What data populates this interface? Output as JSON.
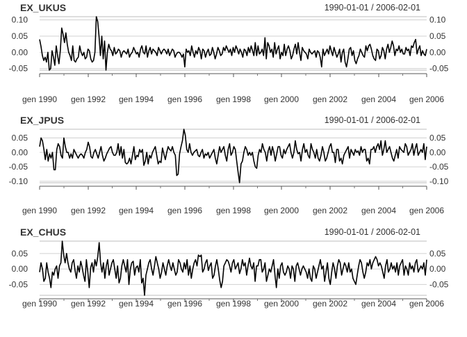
{
  "chart_data": [
    {
      "type": "line",
      "title": "EX_UKUS",
      "date_range": "1990-01-01 / 2006-02-01",
      "x_ticks": [
        "gen 1990",
        "gen 1992",
        "gen 1994",
        "gen 1996",
        "gen 1998",
        "gen 2000",
        "gen 2002",
        "gen 2004",
        "gen 2006"
      ],
      "y_ticks": [
        "0.10",
        "0.05",
        "0.00",
        "-0.05"
      ],
      "ylim": [
        -0.055,
        0.11
      ],
      "grid": true,
      "series": [
        {
          "values": [
            0.04,
            0.018,
            -0.01,
            -0.025,
            -0.015,
            -0.03,
            0.0,
            -0.055,
            -0.05,
            0.005,
            -0.015,
            -0.04,
            0.02,
            -0.01,
            -0.035,
            0.005,
            0.075,
            0.055,
            0.03,
            0.06,
            0.025,
            0.0,
            -0.01,
            -0.025,
            0.02,
            -0.025,
            -0.03,
            -0.02,
            -0.015,
            0.02,
            0.0,
            -0.01,
            0.0,
            -0.02,
            -0.015,
            0.01,
            0.005,
            -0.02,
            -0.03,
            -0.025,
            0.0,
            0.11,
            0.095,
            0.05,
            -0.01,
            0.05,
            -0.02,
            0.035,
            -0.055,
            0.0,
            0.025,
            0.01,
            0.005,
            -0.01,
            0.015,
            -0.005,
            0.0,
            0.01,
            0.005,
            -0.015,
            0.0,
            0.005,
            0.0,
            -0.005,
            0.01,
            -0.015,
            -0.005,
            0.0,
            0.015,
            0.005,
            -0.005,
            0.0,
            -0.015,
            0.01,
            0.02,
            0.0,
            -0.005,
            0.02,
            -0.015,
            0.005,
            0.015,
            -0.005,
            0.01,
            0.005,
            0.0,
            -0.01,
            0.015,
            0.005,
            -0.005,
            0.005,
            0.01,
            0.005,
            -0.005,
            0.01,
            -0.01,
            0.0,
            0.01,
            0.005,
            -0.015,
            -0.005,
            0.0,
            0.0,
            -0.005,
            -0.015,
            -0.005,
            -0.045,
            0.01,
            0.0,
            0.005,
            -0.01,
            0.02,
            0.0,
            -0.015,
            0.005,
            -0.005,
            0.015,
            0.005,
            -0.02,
            0.01,
            0.005,
            -0.015,
            0.0,
            0.01,
            -0.01,
            -0.005,
            0.015,
            0.0,
            -0.02,
            -0.005,
            0.015,
            0.005,
            -0.01,
            -0.005,
            0.015,
            0.005,
            0.02,
            0.01,
            0.0,
            0.01,
            -0.01,
            0.015,
            0.0,
            0.02,
            0.01,
            -0.005,
            0.01,
            0.0,
            -0.015,
            0.01,
            0.005,
            -0.01,
            0.015,
            0.0,
            0.02,
            0.005,
            -0.01,
            0.03,
            -0.01,
            0.02,
            -0.005,
            0.0,
            0.01,
            -0.01,
            0.045,
            -0.02,
            0.03,
            0.02,
            0.0,
            0.01,
            -0.015,
            0.03,
            -0.005,
            0.01,
            0.02,
            -0.02,
            0.0,
            -0.01,
            0.025,
            -0.01,
            0.01,
            0.02,
            0.005,
            -0.02,
            -0.01,
            0.01,
            0.025,
            -0.005,
            0.03,
            0.0,
            -0.025,
            0.015,
            0.005,
            0.0,
            -0.005,
            -0.02,
            0.01,
            0.0,
            -0.005,
            0.0,
            0.005,
            -0.015,
            0.005,
            0.0,
            -0.015,
            -0.045,
            0.01,
            -0.01,
            0.0,
            0.01,
            -0.005,
            0.02,
            0.005,
            -0.01,
            0.015,
            0.0,
            -0.015,
            -0.005,
            0.01,
            -0.03,
            0.0,
            0.01,
            -0.03,
            -0.045,
            -0.02,
            0.01,
            0.015,
            -0.01,
            0.005,
            -0.025,
            -0.035,
            -0.02,
            -0.01,
            0.01,
            0.0,
            -0.01,
            -0.015,
            0.02,
            0.005,
            0.02,
            0.025,
            0.01,
            -0.01,
            -0.02,
            -0.025,
            0.01,
            0.005,
            -0.02,
            -0.01,
            0.015,
            0.005,
            -0.02,
            0.01,
            0.025,
            0.0,
            0.015,
            0.035,
            0.02,
            -0.01,
            0.01,
            0.005,
            0.02,
            0.0,
            0.01,
            -0.005,
            -0.005,
            0.015,
            0.005,
            0.01,
            -0.01,
            0.02,
            0.015,
            0.03,
            0.04,
            -0.005,
            0.01,
            0.02,
            -0.01,
            0.005,
            -0.005,
            -0.01,
            0.01
          ]
        }
      ]
    },
    {
      "type": "line",
      "title": "EX_JPUS",
      "date_range": "1990-01-01 / 2006-02-01",
      "x_ticks": [
        "gen 1990",
        "gen 1992",
        "gen 1994",
        "gen 1996",
        "gen 1998",
        "gen 2000",
        "gen 2002",
        "gen 2004",
        "gen 2006"
      ],
      "y_ticks": [
        "0.05",
        "0.00",
        "-0.05",
        "-0.10"
      ],
      "ylim": [
        -0.105,
        0.08
      ],
      "grid": true,
      "series": [
        {
          "values": [
            0.02,
            0.05,
            0.04,
            0.01,
            -0.025,
            0.01,
            -0.03,
            -0.005,
            -0.02,
            0.0,
            -0.06,
            -0.06,
            0.01,
            0.03,
            0.02,
            -0.01,
            -0.02,
            0.05,
            0.02,
            0.0,
            0.0,
            -0.02,
            -0.005,
            -0.02,
            0.01,
            0.0,
            -0.01,
            -0.02,
            -0.01,
            -0.005,
            -0.01,
            -0.02,
            0.0,
            0.01,
            0.035,
            0.02,
            -0.015,
            -0.02,
            0.0,
            0.01,
            -0.005,
            -0.02,
            0.0,
            0.02,
            -0.01,
            -0.03,
            -0.02,
            -0.005,
            0.005,
            0.015,
            0.02,
            0.0,
            -0.01,
            -0.01,
            0.0,
            0.03,
            -0.01,
            0.02,
            -0.02,
            0.01,
            -0.035,
            -0.04,
            -0.035,
            -0.02,
            -0.04,
            -0.01,
            0.02,
            -0.025,
            -0.01,
            -0.015,
            0.01,
            0.0,
            0.01,
            -0.045,
            -0.03,
            0.0,
            -0.04,
            -0.01,
            -0.02,
            0.0,
            0.01,
            0.02,
            -0.01,
            -0.04,
            -0.03,
            -0.035,
            0.015,
            -0.005,
            -0.025,
            0.0,
            0.02,
            0.01,
            0.005,
            0.02,
            0.0,
            -0.01,
            -0.08,
            -0.075,
            -0.005,
            0.02,
            0.04,
            0.08,
            0.06,
            0.01,
            0.0,
            0.03,
            0.0,
            -0.01,
            0.0,
            0.005,
            0.01,
            -0.01,
            -0.015,
            0.0,
            0.01,
            -0.02,
            -0.005,
            -0.01,
            0.0,
            -0.02,
            -0.01,
            0.0,
            0.01,
            -0.02,
            -0.04,
            -0.01,
            0.02,
            0.0,
            0.01,
            0.02,
            -0.01,
            -0.03,
            0.01,
            0.03,
            -0.01,
            0.0,
            0.02,
            0.01,
            -0.03,
            -0.07,
            -0.105,
            -0.04,
            -0.03,
            0.0,
            0.02,
            0.01,
            -0.01,
            0.0,
            -0.01,
            0.0,
            -0.03,
            -0.05,
            -0.055,
            -0.01,
            0.01,
            0.0,
            0.03,
            0.01,
            0.0,
            -0.03,
            0.005,
            0.02,
            -0.01,
            0.02,
            0.0,
            -0.03,
            -0.005,
            0.02,
            0.02,
            -0.01,
            -0.02,
            0.01,
            -0.005,
            0.01,
            0.02,
            0.03,
            0.0,
            -0.02,
            0.0,
            0.04,
            0.01,
            -0.005,
            0.0,
            -0.03,
            0.01,
            0.03,
            0.0,
            0.01,
            -0.01,
            -0.02,
            0.03,
            0.01,
            0.0,
            -0.02,
            0.01,
            -0.02,
            -0.03,
            -0.01,
            0.02,
            0.0,
            -0.03,
            -0.02,
            0.0,
            0.02,
            0.03,
            0.0,
            0.0,
            -0.035,
            0.01,
            0.01,
            -0.03,
            -0.02,
            -0.04,
            -0.01,
            0.0,
            0.01,
            0.02,
            -0.02,
            0.01,
            0.0,
            -0.01,
            0.01,
            0.0,
            0.005,
            -0.01,
            0.02,
            0.0,
            0.01,
            0.01,
            -0.03,
            -0.02,
            -0.04,
            0.01,
            0.01,
            0.02,
            0.0,
            0.02,
            0.03,
            0.01,
            0.04,
            -0.01,
            0.01,
            0.04,
            0.0,
            0.01,
            0.02,
            0.0,
            -0.02,
            -0.03,
            -0.01,
            0.01,
            -0.02,
            0.02,
            0.01,
            0.005,
            0.0,
            0.03,
            0.02,
            -0.01,
            0.0,
            0.01,
            0.03,
            -0.01,
            0.015,
            0.03,
            -0.01,
            0.0,
            0.01,
            0.0,
            0.03,
            -0.025,
            0.02
          ]
        }
      ]
    },
    {
      "type": "line",
      "title": "EX_CHUS",
      "date_range": "1990-01-01 / 2006-02-01",
      "x_ticks": [
        "gen 1990",
        "gen 1992",
        "gen 1994",
        "gen 1996",
        "gen 1998",
        "gen 2000",
        "gen 2002",
        "gen 2004",
        "gen 2006"
      ],
      "y_ticks": [
        "0.05",
        "0.00",
        "-0.05"
      ],
      "ylim": [
        -0.085,
        0.09
      ],
      "grid": true,
      "series": [
        {
          "values": [
            -0.01,
            0.02,
            0.0,
            -0.04,
            -0.03,
            0.02,
            -0.01,
            -0.03,
            -0.06,
            -0.01,
            -0.02,
            0.0,
            0.01,
            -0.03,
            0.01,
            0.02,
            0.09,
            0.045,
            0.02,
            0.05,
            0.02,
            0.0,
            -0.01,
            0.02,
            0.03,
            -0.005,
            -0.03,
            0.01,
            -0.01,
            0.025,
            0.005,
            -0.02,
            -0.04,
            0.03,
            -0.01,
            -0.06,
            0.005,
            0.02,
            -0.01,
            0.03,
            0.01,
            0.04,
            0.085,
            0.02,
            -0.01,
            0.02,
            -0.03,
            0.01,
            0.03,
            -0.02,
            0.0,
            0.02,
            0.03,
            0.0,
            -0.03,
            0.01,
            -0.045,
            -0.03,
            0.01,
            0.03,
            0.01,
            -0.01,
            0.03,
            -0.05,
            0.0,
            0.02,
            0.025,
            -0.02,
            0.005,
            0.01,
            -0.01,
            0.03,
            -0.045,
            -0.03,
            -0.085,
            -0.02,
            0.0,
            0.02,
            0.03,
            0.0,
            -0.02,
            0.01,
            0.04,
            0.02,
            0.0,
            -0.03,
            -0.01,
            0.02,
            0.0,
            -0.02,
            0.01,
            0.03,
            0.01,
            -0.005,
            0.02,
            0.0,
            -0.02,
            -0.01,
            0.03,
            0.02,
            0.0,
            -0.01,
            0.02,
            0.0,
            0.03,
            -0.02,
            0.01,
            -0.03,
            0.0,
            0.02,
            0.03,
            0.01,
            0.045,
            0.04,
            0.045,
            -0.01,
            0.0,
            0.02,
            0.03,
            -0.005,
            0.01,
            0.02,
            -0.03,
            -0.02,
            0.01,
            0.03,
            0.0,
            -0.035,
            -0.06,
            -0.04,
            0.01,
            0.02,
            0.03,
            0.025,
            0.01,
            -0.01,
            0.02,
            0.03,
            0.0,
            0.01,
            0.02,
            -0.015,
            0.0,
            0.03,
            0.01,
            0.02,
            -0.02,
            0.01,
            0.035,
            0.01,
            0.0,
            0.02,
            -0.04,
            0.01,
            0.01,
            0.03,
            0.03,
            -0.01,
            0.0,
            0.02,
            -0.04,
            -0.02,
            0.0,
            -0.01,
            0.01,
            0.03,
            -0.02,
            -0.06,
            0.0,
            -0.03,
            0.01,
            0.02,
            -0.01,
            -0.02,
            -0.01,
            0.01,
            0.0,
            -0.03,
            0.01,
            0.0,
            -0.04,
            0.01,
            0.02,
            0.0,
            -0.02,
            0.0,
            0.01,
            0.0,
            -0.01,
            -0.03,
            0.0,
            -0.03,
            -0.04,
            0.01,
            0.0,
            -0.03,
            -0.01,
            0.01,
            0.03,
            0.0,
            0.01,
            -0.04,
            -0.01,
            0.02,
            -0.03,
            -0.05,
            -0.01,
            0.02,
            0.0,
            -0.03,
            0.01,
            0.03,
            0.02,
            -0.02,
            0.0,
            0.02,
            0.01,
            -0.01,
            0.02,
            -0.01,
            0.0,
            -0.03,
            -0.04,
            -0.05,
            -0.02,
            0.01,
            0.03,
            0.02,
            -0.01,
            -0.03,
            -0.01,
            0.02,
            0.01,
            0.03,
            0.0,
            0.02,
            0.03,
            0.04,
            0.03,
            0.01,
            0.02,
            0.01,
            -0.01,
            -0.03,
            0.01,
            0.03,
            -0.01,
            0.0,
            0.02,
            0.0,
            0.01,
            -0.01,
            0.02,
            -0.02,
            0.01,
            0.02,
            0.03,
            -0.02,
            0.01,
            0.0,
            -0.02,
            0.02,
            0.0,
            0.01,
            -0.01,
            0.02,
            0.03,
            -0.01,
            0.0,
            0.01,
            0.0,
            0.02,
            -0.02,
            0.03
          ]
        }
      ]
    }
  ]
}
